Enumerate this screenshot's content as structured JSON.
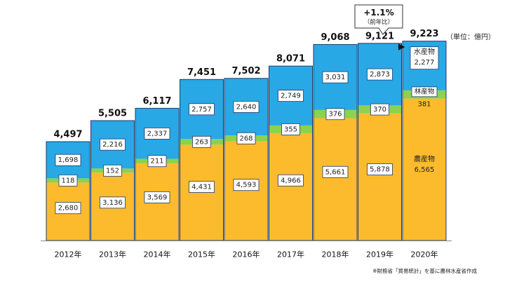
{
  "unit_label": "（単位：億円）",
  "source_note": "※財務省「貿易統計」を基に農林水産省作成",
  "callout": {
    "line1": "+1.1%",
    "line2": "（前年比）"
  },
  "colors": {
    "agri": "#FBBB2C",
    "forest": "#8DD14E",
    "fish": "#29A8E6",
    "edge": "#1F3A6B"
  },
  "chart_data": {
    "type": "bar",
    "stacked": true,
    "categories": [
      "2012年",
      "2013年",
      "2014年",
      "2015年",
      "2016年",
      "2017年",
      "2018年",
      "2019年",
      "2020年"
    ],
    "series": [
      {
        "name": "農産物",
        "values": [
          2680,
          3136,
          3569,
          4431,
          4593,
          4966,
          5661,
          5878,
          6565
        ]
      },
      {
        "name": "林産物",
        "values": [
          118,
          152,
          211,
          263,
          268,
          355,
          376,
          370,
          381
        ]
      },
      {
        "name": "水産物",
        "values": [
          1698,
          2216,
          2337,
          2757,
          2640,
          2749,
          3031,
          2873,
          2277
        ]
      }
    ],
    "value_labels": {
      "農産物": [
        "2,680",
        "3,136",
        "3,569",
        "4,431",
        "4,593",
        "4,966",
        "5,661",
        "5,878",
        "6,565"
      ],
      "林産物": [
        "118",
        "152",
        "211",
        "263",
        "268",
        "355",
        "376",
        "370",
        "381"
      ],
      "水産物": [
        "1,698",
        "2,216",
        "2,337",
        "2,757",
        "2,640",
        "2,749",
        "3,031",
        "2,873",
        "2,277"
      ]
    },
    "totals": [
      "4,497",
      "5,505",
      "6,117",
      "7,451",
      "7,502",
      "8,071",
      "9,068",
      "9,121",
      "9,223"
    ],
    "total_values": [
      4497,
      5505,
      6117,
      7451,
      7502,
      8071,
      9068,
      9121,
      9223
    ]
  }
}
